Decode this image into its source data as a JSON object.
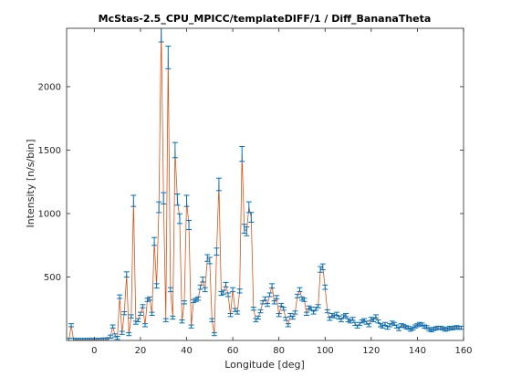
{
  "chart_data": {
    "type": "line",
    "title": "McStas-2.5_CPU_MPICC/templateDIFF/1 / Diff_BananaTheta",
    "xlabel": "Longitude [deg]",
    "ylabel": "Intensity [n/s/bin]",
    "xlim": [
      -12,
      160
    ],
    "ylim": [
      0,
      2460
    ],
    "xticks": [
      0,
      20,
      40,
      60,
      80,
      100,
      120,
      140,
      160
    ],
    "yticks": [
      500,
      1000,
      1500,
      2000
    ],
    "grid": false,
    "legend": "none",
    "colors": {
      "line": "#D95319",
      "errorbar": "#0072BD",
      "axis": "#262626"
    },
    "series": [
      {
        "points": [
          [
            -11,
            5
          ],
          [
            -10,
            120
          ],
          [
            -9,
            6
          ],
          [
            -8,
            4
          ],
          [
            -7,
            5
          ],
          [
            -6,
            4
          ],
          [
            -5,
            3
          ],
          [
            -4,
            5
          ],
          [
            -3,
            4
          ],
          [
            -2,
            6
          ],
          [
            -1,
            4
          ],
          [
            0,
            5
          ],
          [
            1,
            4
          ],
          [
            2,
            6
          ],
          [
            3,
            5
          ],
          [
            4,
            8
          ],
          [
            5,
            6
          ],
          [
            6,
            10
          ],
          [
            7,
            30
          ],
          [
            8,
            110
          ],
          [
            9,
            40
          ],
          [
            10,
            20
          ],
          [
            11,
            345
          ],
          [
            12,
            60
          ],
          [
            13,
            215
          ],
          [
            14,
            520
          ],
          [
            15,
            50
          ],
          [
            16,
            190
          ],
          [
            17,
            1100
          ],
          [
            18,
            140
          ],
          [
            19,
            160
          ],
          [
            20,
            210
          ],
          [
            21,
            270
          ],
          [
            22,
            120
          ],
          [
            23,
            320
          ],
          [
            24,
            330
          ],
          [
            25,
            210
          ],
          [
            26,
            780
          ],
          [
            27,
            430
          ],
          [
            28,
            1050
          ],
          [
            29,
            2450
          ],
          [
            30,
            1120
          ],
          [
            31,
            160
          ],
          [
            32,
            2230
          ],
          [
            33,
            400
          ],
          [
            34,
            180
          ],
          [
            35,
            1500
          ],
          [
            36,
            1110
          ],
          [
            37,
            960
          ],
          [
            38,
            150
          ],
          [
            39,
            300
          ],
          [
            40,
            1100
          ],
          [
            41,
            910
          ],
          [
            42,
            110
          ],
          [
            43,
            310
          ],
          [
            44,
            320
          ],
          [
            45,
            330
          ],
          [
            46,
            420
          ],
          [
            47,
            480
          ],
          [
            48,
            400
          ],
          [
            49,
            650
          ],
          [
            50,
            630
          ],
          [
            51,
            160
          ],
          [
            52,
            50
          ],
          [
            53,
            700
          ],
          [
            54,
            1230
          ],
          [
            55,
            370
          ],
          [
            56,
            380
          ],
          [
            57,
            440
          ],
          [
            58,
            360
          ],
          [
            59,
            200
          ],
          [
            60,
            400
          ],
          [
            61,
            240
          ],
          [
            62,
            220
          ],
          [
            63,
            390
          ],
          [
            64,
            1470
          ],
          [
            65,
            880
          ],
          [
            66,
            860
          ],
          [
            67,
            1050
          ],
          [
            68,
            970
          ],
          [
            69,
            250
          ],
          [
            70,
            160
          ],
          [
            71,
            180
          ],
          [
            72,
            230
          ],
          [
            73,
            300
          ],
          [
            74,
            330
          ],
          [
            75,
            280
          ],
          [
            76,
            360
          ],
          [
            77,
            430
          ],
          [
            78,
            300
          ],
          [
            79,
            340
          ],
          [
            80,
            200
          ],
          [
            81,
            280
          ],
          [
            82,
            250
          ],
          [
            83,
            170
          ],
          [
            84,
            120
          ],
          [
            85,
            200
          ],
          [
            86,
            180
          ],
          [
            87,
            220
          ],
          [
            88,
            350
          ],
          [
            89,
            400
          ],
          [
            90,
            330
          ],
          [
            91,
            320
          ],
          [
            92,
            210
          ],
          [
            93,
            260
          ],
          [
            94,
            250
          ],
          [
            95,
            220
          ],
          [
            96,
            250
          ],
          [
            97,
            270
          ],
          [
            98,
            560
          ],
          [
            99,
            580
          ],
          [
            100,
            420
          ],
          [
            101,
            230
          ],
          [
            102,
            170
          ],
          [
            103,
            200
          ],
          [
            104,
            190
          ],
          [
            105,
            210
          ],
          [
            106,
            180
          ],
          [
            107,
            160
          ],
          [
            108,
            190
          ],
          [
            109,
            200
          ],
          [
            110,
            160
          ],
          [
            111,
            150
          ],
          [
            112,
            170
          ],
          [
            113,
            130
          ],
          [
            114,
            110
          ],
          [
            115,
            130
          ],
          [
            116,
            150
          ],
          [
            117,
            160
          ],
          [
            118,
            140
          ],
          [
            119,
            120
          ],
          [
            120,
            170
          ],
          [
            121,
            160
          ],
          [
            122,
            190
          ],
          [
            123,
            150
          ],
          [
            124,
            120
          ],
          [
            125,
            110
          ],
          [
            126,
            130
          ],
          [
            127,
            100
          ],
          [
            128,
            120
          ],
          [
            129,
            140
          ],
          [
            130,
            130
          ],
          [
            131,
            110
          ],
          [
            132,
            90
          ],
          [
            133,
            120
          ],
          [
            134,
            115
          ],
          [
            135,
            105
          ],
          [
            136,
            100
          ],
          [
            137,
            85
          ],
          [
            138,
            95
          ],
          [
            139,
            110
          ],
          [
            140,
            120
          ],
          [
            141,
            130
          ],
          [
            142,
            125
          ],
          [
            143,
            110
          ],
          [
            144,
            105
          ],
          [
            145,
            90
          ],
          [
            146,
            80
          ],
          [
            147,
            90
          ],
          [
            148,
            95
          ],
          [
            149,
            100
          ],
          [
            150,
            100
          ],
          [
            151,
            95
          ],
          [
            152,
            85
          ],
          [
            153,
            90
          ],
          [
            154,
            100
          ],
          [
            155,
            95
          ],
          [
            156,
            100
          ],
          [
            157,
            105
          ],
          [
            158,
            100
          ],
          [
            159,
            100
          ]
        ],
        "error_rel": 0.04,
        "error_min": 12
      }
    ]
  }
}
